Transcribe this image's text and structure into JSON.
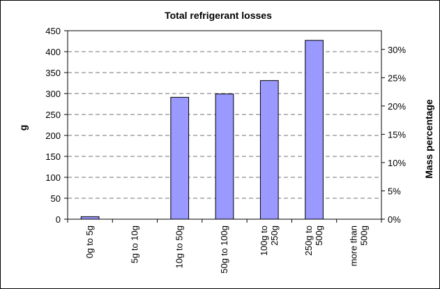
{
  "chart_data": {
    "type": "bar",
    "title": "Total refrigerant losses",
    "xlabel": "",
    "ylabel": "g",
    "y2label": "Mass percentage",
    "categories": [
      [
        "0g to 5g"
      ],
      [
        "5g to 10g"
      ],
      [
        "10g to 50g"
      ],
      [
        "50g to 100g"
      ],
      [
        "100g to",
        "250g"
      ],
      [
        "250g to",
        "500g"
      ],
      [
        "more than",
        "500g"
      ]
    ],
    "values": [
      6,
      0,
      291,
      299,
      331,
      427,
      0
    ],
    "ylim": [
      0,
      450
    ],
    "yticks": [
      "0",
      "50",
      "100",
      "150",
      "200",
      "250",
      "300",
      "350",
      "400",
      "450"
    ],
    "y2ticks": [
      "0%",
      "5%",
      "10%",
      "15%",
      "20%",
      "25%",
      "30%"
    ],
    "y2_max_percent": 33.3,
    "grid": true,
    "legend": "none",
    "colors": {
      "bar_fill": "#9999ff",
      "bar_stroke": "#000000",
      "grid": "#000000"
    }
  }
}
